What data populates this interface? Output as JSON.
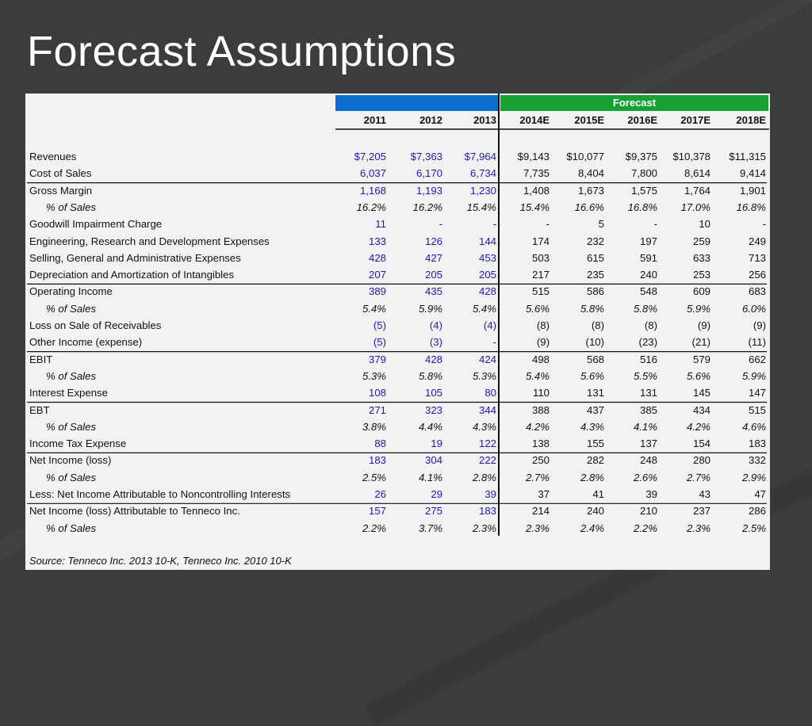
{
  "title": "Forecast Assumptions",
  "header": {
    "forecast_label": "Forecast",
    "years": [
      "2011",
      "2012",
      "2013",
      "2014E",
      "2015E",
      "2016E",
      "2017E",
      "2018E"
    ],
    "historical_color": "#0b6fce",
    "forecast_color": "#16a035"
  },
  "colors": {
    "historical_values": "#1a1ab3",
    "text": "#111111"
  },
  "rows": [
    {
      "label": "Revenues",
      "type": "value",
      "values": [
        "$7,205",
        "$7,363",
        "$7,964",
        "$9,143",
        "$10,077",
        "$9,375",
        "$10,378",
        "$11,315"
      ]
    },
    {
      "label": "Cost of Sales",
      "type": "value",
      "values": [
        "6,037",
        "6,170",
        "6,734",
        "7,735",
        "8,404",
        "7,800",
        "8,614",
        "9,414"
      ]
    },
    {
      "label": "Gross Margin",
      "type": "value",
      "values": [
        "1,168",
        "1,193",
        "1,230",
        "1,408",
        "1,673",
        "1,575",
        "1,764",
        "1,901"
      ]
    },
    {
      "label": "% of Sales",
      "type": "pct",
      "values": [
        "16.2%",
        "16.2%",
        "15.4%",
        "15.4%",
        "16.6%",
        "16.8%",
        "17.0%",
        "16.8%"
      ]
    },
    {
      "label": "Goodwill Impairment Charge",
      "type": "value",
      "values": [
        "11",
        "-",
        "-",
        "-",
        "5",
        "-",
        "10",
        "-"
      ]
    },
    {
      "label": "Engineering, Research and Development Expenses",
      "type": "value",
      "values": [
        "133",
        "126",
        "144",
        "174",
        "232",
        "197",
        "259",
        "249"
      ]
    },
    {
      "label": "Selling, General and Administrative Expenses",
      "type": "value",
      "values": [
        "428",
        "427",
        "453",
        "503",
        "615",
        "591",
        "633",
        "713"
      ]
    },
    {
      "label": "Depreciation and Amortization of Intangibles",
      "type": "value",
      "values": [
        "207",
        "205",
        "205",
        "217",
        "235",
        "240",
        "253",
        "256"
      ]
    },
    {
      "label": "Operating Income",
      "type": "value",
      "values": [
        "389",
        "435",
        "428",
        "515",
        "586",
        "548",
        "609",
        "683"
      ]
    },
    {
      "label": "% of Sales",
      "type": "pct",
      "values": [
        "5.4%",
        "5.9%",
        "5.4%",
        "5.6%",
        "5.8%",
        "5.8%",
        "5.9%",
        "6.0%"
      ]
    },
    {
      "label": "Loss on Sale of Receivables",
      "type": "value",
      "values": [
        "(5)",
        "(4)",
        "(4)",
        "(8)",
        "(8)",
        "(8)",
        "(9)",
        "(9)"
      ]
    },
    {
      "label": "Other Income (expense)",
      "type": "value",
      "values": [
        "(5)",
        "(3)",
        "-",
        "(9)",
        "(10)",
        "(23)",
        "(21)",
        "(11)"
      ]
    },
    {
      "label": "EBIT",
      "type": "value",
      "values": [
        "379",
        "428",
        "424",
        "498",
        "568",
        "516",
        "579",
        "662"
      ]
    },
    {
      "label": "% of Sales",
      "type": "pct",
      "values": [
        "5.3%",
        "5.8%",
        "5.3%",
        "5.4%",
        "5.6%",
        "5.5%",
        "5.6%",
        "5.9%"
      ]
    },
    {
      "label": "Interest Expense",
      "type": "value",
      "values": [
        "108",
        "105",
        "80",
        "110",
        "131",
        "131",
        "145",
        "147"
      ]
    },
    {
      "label": "EBT",
      "type": "value",
      "values": [
        "271",
        "323",
        "344",
        "388",
        "437",
        "385",
        "434",
        "515"
      ]
    },
    {
      "label": "% of Sales",
      "type": "pct",
      "values": [
        "3.8%",
        "4.4%",
        "4.3%",
        "4.2%",
        "4.3%",
        "4.1%",
        "4.2%",
        "4.6%"
      ]
    },
    {
      "label": "Income Tax Expense",
      "type": "value",
      "values": [
        "88",
        "19",
        "122",
        "138",
        "155",
        "137",
        "154",
        "183"
      ]
    },
    {
      "label": "Net Income (loss)",
      "type": "value",
      "values": [
        "183",
        "304",
        "222",
        "250",
        "282",
        "248",
        "280",
        "332"
      ]
    },
    {
      "label": "% of Sales",
      "type": "pct",
      "values": [
        "2.5%",
        "4.1%",
        "2.8%",
        "2.7%",
        "2.8%",
        "2.6%",
        "2.7%",
        "2.9%"
      ]
    },
    {
      "label": "Less: Net Income Attributable to Noncontrolling Interests",
      "type": "value",
      "values": [
        "26",
        "29",
        "39",
        "37",
        "41",
        "39",
        "43",
        "47"
      ]
    },
    {
      "label": "Net Income (loss) Attributable to Tenneco Inc.",
      "type": "value",
      "values": [
        "157",
        "275",
        "183",
        "214",
        "240",
        "210",
        "237",
        "286"
      ]
    },
    {
      "label": "% of Sales",
      "type": "pct",
      "values": [
        "2.2%",
        "3.7%",
        "2.3%",
        "2.3%",
        "2.4%",
        "2.2%",
        "2.3%",
        "2.5%"
      ]
    }
  ],
  "source": "Source: Tenneco Inc. 2013 10-K, Tenneco Inc. 2010 10-K"
}
